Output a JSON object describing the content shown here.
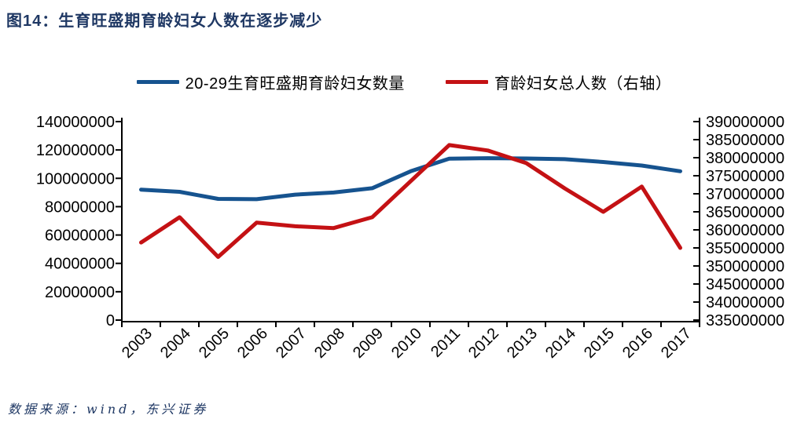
{
  "header": {
    "title": "图14：生育旺盛期育龄妇女人数在逐步减少"
  },
  "footer": {
    "source": "数据来源：wind，东兴证券"
  },
  "colors": {
    "title": "#1F3864",
    "axis": "#000000",
    "series_blue": "#16538F",
    "series_red": "#C41114"
  },
  "chart_data": {
    "type": "line",
    "title": "图14：生育旺盛期育龄妇女人数在逐步减少",
    "grid": false,
    "legend_position": "top",
    "categories": [
      "2003",
      "2004",
      "2005",
      "2006",
      "2007",
      "2008",
      "2009",
      "2010",
      "2011",
      "2012",
      "2013",
      "2014",
      "2015",
      "2016",
      "2017"
    ],
    "series": [
      {
        "name": "20-29生育旺盛期育龄妇女数量",
        "axis": "left",
        "color": "#16538F",
        "values": [
          92000000,
          90500000,
          85500000,
          85300000,
          88500000,
          90000000,
          93000000,
          105000000,
          113800000,
          114200000,
          114000000,
          113500000,
          111500000,
          109000000,
          105000000
        ]
      },
      {
        "name": "育龄妇女总人数（右轴）",
        "axis": "right",
        "color": "#C41114",
        "values": [
          356500000,
          363500000,
          352500000,
          362000000,
          361000000,
          360500000,
          363500000,
          373500000,
          383500000,
          382000000,
          378500000,
          371500000,
          365000000,
          372000000,
          355000000
        ]
      }
    ],
    "left_axis": {
      "min": 0,
      "max": 140000000,
      "step": 20000000,
      "ticks": [
        0,
        20000000,
        40000000,
        60000000,
        80000000,
        100000000,
        120000000,
        140000000
      ]
    },
    "right_axis": {
      "min": 335000000,
      "max": 390000000,
      "step": 5000000,
      "ticks": [
        335000000,
        340000000,
        345000000,
        350000000,
        355000000,
        360000000,
        365000000,
        370000000,
        375000000,
        380000000,
        385000000,
        390000000
      ]
    }
  }
}
